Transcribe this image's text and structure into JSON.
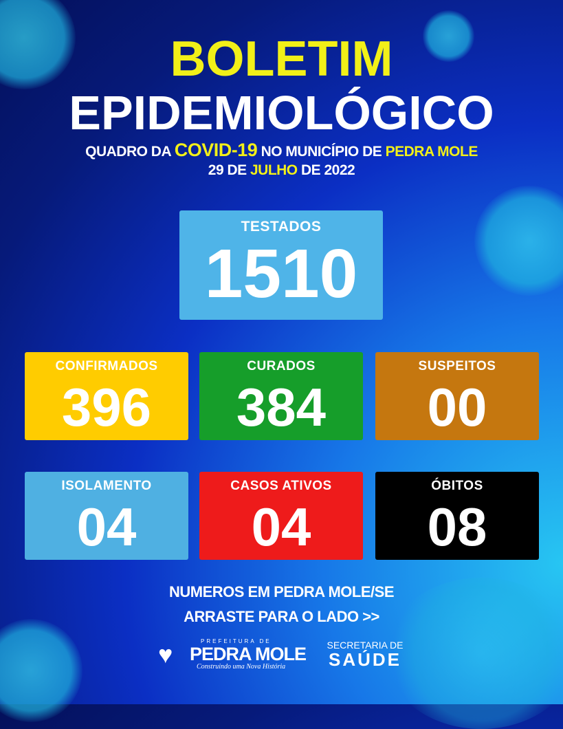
{
  "header": {
    "title1": "BOLETIM",
    "title2": "EPIDEMIOLÓGICO",
    "subtitle": {
      "p1": "QUADRO DA ",
      "p2": "COVID-19",
      "p3": " NO MUNICÍPIO DE ",
      "p4": "PEDRA MOLE"
    },
    "date": {
      "p1": "29 DE ",
      "p2": "JULHO",
      "p3": " DE 2022"
    }
  },
  "stats": {
    "testados": {
      "label": "TESTADOS",
      "value": "1510",
      "color": "#4fb4e8"
    },
    "confirmados": {
      "label": "CONFIRMADOS",
      "value": "396",
      "color": "#ffcc00"
    },
    "curados": {
      "label": "CURADOS",
      "value": "384",
      "color": "#169e2a"
    },
    "suspeitos": {
      "label": "SUSPEITOS",
      "value": "00",
      "color": "#c5770f"
    },
    "isolamento": {
      "label": "ISOLAMENTO",
      "value": "04",
      "color": "#4fb0e2"
    },
    "casos_ativos": {
      "label": "CASOS ATIVOS",
      "value": "04",
      "color": "#ee1b1b"
    },
    "obitos": {
      "label": "ÓBITOS",
      "value": "08",
      "color": "#000000"
    }
  },
  "footer": {
    "line1": "NUMEROS EM PEDRA MOLE/SE",
    "line2": "ARRASTE PARA O LADO >>",
    "logo1": {
      "top": "PREFEITURA DE",
      "name": "PEDRA MOLE",
      "tagline": "Construindo uma Nova História"
    },
    "logo2": {
      "top": "SECRETARIA DE",
      "name": "SAÚDE"
    }
  }
}
